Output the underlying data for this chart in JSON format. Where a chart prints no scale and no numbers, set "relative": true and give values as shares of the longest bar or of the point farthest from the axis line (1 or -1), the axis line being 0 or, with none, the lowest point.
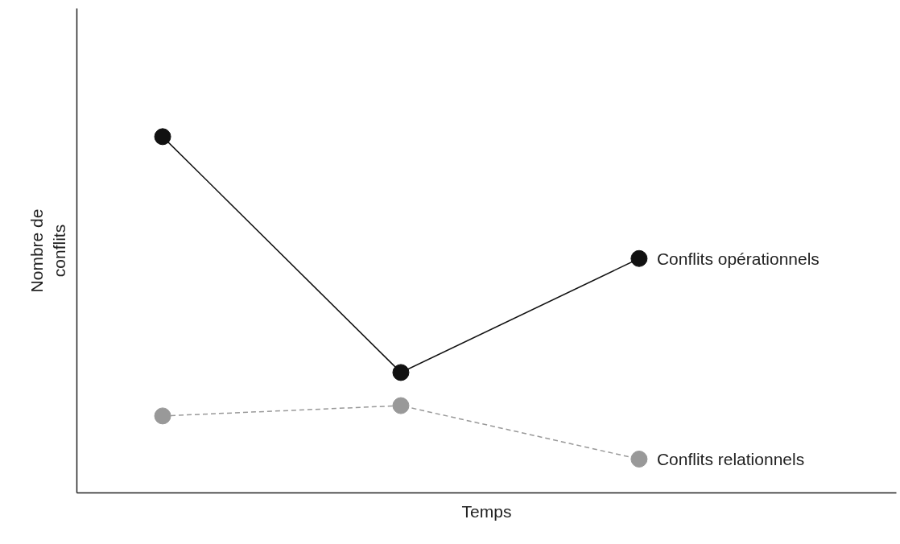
{
  "chart_data": {
    "type": "line",
    "relative": true,
    "xlabel": "Temps",
    "ylabel": "Nombre de\nconflits",
    "categories": [
      null,
      null,
      null
    ],
    "marker": "circle",
    "grid": false,
    "tick_labels": false,
    "series": [
      {
        "name": "Conflits opérationnels",
        "color": "#111111",
        "line_style": "solid",
        "values": [
          1,
          0.338,
          0.658
        ]
      },
      {
        "name": "Conflits relationnels",
        "color": "#999999",
        "line_style": "dashed",
        "values": [
          0.216,
          0.245,
          0.095
        ]
      }
    ]
  }
}
